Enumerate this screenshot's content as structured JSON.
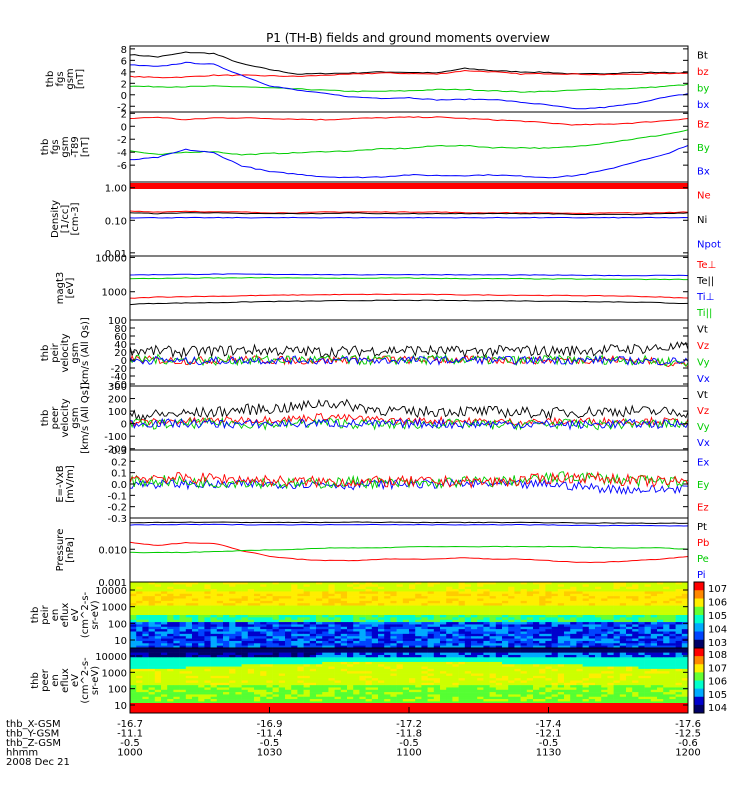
{
  "title": "P1 (TH-B) fields and ground moments overview",
  "colors": {
    "black": "#000000",
    "red": "#ff0000",
    "green": "#00cc00",
    "blue": "#0000ff"
  },
  "chart_data": [
    {
      "type": "line",
      "ylabel": [
        "thb",
        "fgs",
        "gsm",
        "[nT]"
      ],
      "yticks": [
        "8",
        "6",
        "4",
        "2",
        "0",
        "-2"
      ],
      "ylim": [
        -3,
        8.5
      ],
      "series": [
        {
          "name": "Bt",
          "color": "black",
          "values": [
            7,
            6.6,
            7.4,
            7.2,
            5.4,
            4.4,
            3.6,
            3.7,
            3.8,
            4.0,
            3.9,
            3.8,
            4.6,
            4.2,
            4.0,
            3.9,
            3.6,
            3.7,
            3.9,
            3.9,
            3.8
          ]
        },
        {
          "name": "bz",
          "color": "red",
          "values": [
            3.2,
            3.0,
            3.1,
            3.4,
            3.4,
            3.3,
            3.2,
            3.4,
            3.6,
            3.8,
            3.7,
            3.6,
            4.2,
            4.0,
            3.6,
            3.7,
            3.6,
            3.5,
            3.6,
            3.7,
            3.8
          ]
        },
        {
          "name": "by",
          "color": "green",
          "values": [
            1.5,
            1.4,
            1.4,
            1.5,
            1.4,
            1.2,
            1.0,
            0.8,
            0.6,
            0.6,
            0.7,
            0.9,
            0.9,
            0.7,
            0.5,
            0.6,
            0.8,
            1.0,
            1.1,
            1.4,
            1.8
          ]
        },
        {
          "name": "bx",
          "color": "blue",
          "values": [
            5.2,
            4.9,
            5.6,
            5.3,
            3.4,
            1.6,
            0.8,
            0.2,
            -0.4,
            -0.6,
            -0.5,
            -0.9,
            -0.8,
            -0.8,
            -1.3,
            -1.8,
            -2.5,
            -2.2,
            -1.6,
            -0.6,
            0.2
          ]
        }
      ]
    },
    {
      "type": "line",
      "ylabel": [
        "thb",
        "fgs",
        "gsm",
        "-T89",
        "[nT]"
      ],
      "yticks": [
        "2",
        "0",
        "-2",
        "-4",
        "-6"
      ],
      "ylim": [
        -8.6,
        2.2
      ],
      "series": [
        {
          "name": "Bz",
          "color": "red",
          "values": [
            1.2,
            1.4,
            1.0,
            1.3,
            1.3,
            1.2,
            1.1,
            1.0,
            1.2,
            1.3,
            1.4,
            1.4,
            1.2,
            1.0,
            0.8,
            0.5,
            0.2,
            0.3,
            0.5,
            0.8,
            1.2
          ]
        },
        {
          "name": "By",
          "color": "green",
          "values": [
            -3.8,
            -4.4,
            -4.0,
            -3.9,
            -4.4,
            -4.2,
            -4.1,
            -3.9,
            -3.8,
            -3.5,
            -3.4,
            -3.0,
            -3.0,
            -3.3,
            -3.3,
            -3.4,
            -3.1,
            -2.6,
            -2.0,
            -1.4,
            -0.6
          ]
        },
        {
          "name": "Bx",
          "color": "blue",
          "values": [
            -5.2,
            -4.8,
            -3.6,
            -4.1,
            -6.1,
            -7.0,
            -7.4,
            -7.8,
            -7.9,
            -7.8,
            -7.5,
            -7.6,
            -7.6,
            -7.5,
            -7.7,
            -7.9,
            -7.6,
            -6.8,
            -5.6,
            -4.6,
            -3.0
          ]
        }
      ]
    },
    {
      "type": "line",
      "ylabel": [
        "Density",
        "[1/cc]",
        "[cm-3]"
      ],
      "yticks": [
        "1.00",
        "0.10",
        "0.01"
      ],
      "log": true,
      "ylim": [
        0.008,
        1.5
      ],
      "series": [
        {
          "name": "Ne",
          "color": "red",
          "values": [
            0.19,
            0.18,
            0.19,
            0.18,
            0.18,
            0.17,
            0.17,
            0.18,
            0.18,
            0.18,
            0.18,
            0.18,
            0.17,
            0.17,
            0.17,
            0.17,
            0.16,
            0.17,
            0.17,
            0.17,
            0.18
          ]
        },
        {
          "name": "Ni",
          "color": "black",
          "values": [
            0.17,
            0.16,
            0.17,
            0.17,
            0.16,
            0.16,
            0.16,
            0.16,
            0.17,
            0.16,
            0.16,
            0.16,
            0.16,
            0.16,
            0.16,
            0.16,
            0.15,
            0.15,
            0.15,
            0.16,
            0.17
          ]
        },
        {
          "name": "Npot",
          "color": "blue",
          "values": [
            0.12,
            0.12,
            0.12,
            0.12,
            0.12,
            0.12,
            0.12,
            0.12,
            0.12,
            0.12,
            0.12,
            0.12,
            0.12,
            0.12,
            0.12,
            0.12,
            0.12,
            0.12,
            0.12,
            0.12,
            0.12
          ]
        }
      ]
    },
    {
      "type": "line",
      "ylabel": [
        "magt3",
        "[eV]"
      ],
      "yticks": [
        "10000",
        "1000"
      ],
      "log": true,
      "ylim": [
        150,
        11000
      ],
      "series": [
        {
          "name": "Te⊥",
          "color": "red",
          "values": [
            640,
            700,
            720,
            740,
            760,
            790,
            800,
            820,
            830,
            840,
            840,
            830,
            810,
            800,
            790,
            780,
            770,
            760,
            740,
            700,
            650
          ]
        },
        {
          "name": "Te||",
          "color": "black",
          "values": [
            430,
            460,
            470,
            480,
            500,
            520,
            530,
            540,
            550,
            560,
            560,
            560,
            550,
            550,
            540,
            530,
            520,
            510,
            500,
            480,
            450
          ]
        },
        {
          "name": "Ti⊥",
          "color": "blue",
          "values": [
            3100,
            3150,
            3200,
            3250,
            3250,
            3200,
            3200,
            3150,
            3100,
            3150,
            3150,
            3150,
            3100,
            3100,
            3050,
            3050,
            3000,
            3000,
            2950,
            3000,
            3000
          ]
        },
        {
          "name": "Ti||",
          "color": "green",
          "values": [
            2400,
            2450,
            2500,
            2500,
            2550,
            2550,
            2500,
            2500,
            2450,
            2500,
            2500,
            2450,
            2400,
            2400,
            2400,
            2350,
            2350,
            2300,
            2300,
            2300,
            2300
          ]
        }
      ]
    },
    {
      "type": "line",
      "noisy": true,
      "ylabel": [
        "thb",
        "peir",
        "velocity",
        "gsm",
        "[km/s (All Qs)]"
      ],
      "yticks": [
        "100",
        "80",
        "60",
        "40",
        "20",
        "0",
        "-20",
        "-40",
        "-60"
      ],
      "ylim": [
        -65,
        100
      ],
      "series": [
        {
          "name": "Vt",
          "color": "black",
          "values": [
            25,
            22,
            20,
            22,
            25,
            24,
            22,
            20,
            22,
            24,
            25,
            22,
            21,
            22,
            24,
            22,
            24,
            25,
            28,
            30,
            32
          ],
          "noise": 14
        },
        {
          "name": "Vz",
          "color": "red",
          "values": [
            2,
            0,
            -2,
            0,
            2,
            0,
            -1,
            0,
            1,
            2,
            0,
            0,
            1,
            0,
            -1,
            0,
            0,
            2,
            0,
            -5,
            -12
          ],
          "noise": 10
        },
        {
          "name": "Vy",
          "color": "green",
          "values": [
            0,
            2,
            0,
            -2,
            0,
            0,
            1,
            0,
            -1,
            0,
            0,
            1,
            0,
            0,
            -2,
            0,
            0,
            1,
            0,
            -3,
            -6
          ],
          "noise": 12
        },
        {
          "name": "Vx",
          "color": "blue",
          "values": [
            -2,
            0,
            -3,
            -2,
            0,
            -1,
            0,
            -1,
            0,
            -2,
            0,
            -1,
            0,
            0,
            -1,
            0,
            -1,
            0,
            -2,
            -3,
            -2
          ],
          "noise": 10
        }
      ]
    },
    {
      "type": "line",
      "noisy": true,
      "ylabel": [
        "thb",
        "peer",
        "velocity",
        "gsm",
        "[km/s (All Qs)]"
      ],
      "yticks": [
        "300",
        "200",
        "100",
        "0",
        "-100",
        "-200"
      ],
      "ylim": [
        -210,
        300
      ],
      "series": [
        {
          "name": "Vt",
          "color": "black",
          "values": [
            60,
            70,
            80,
            90,
            110,
            120,
            130,
            170,
            140,
            110,
            90,
            100,
            100,
            95,
            90,
            85,
            90,
            100,
            100,
            95,
            90
          ],
          "noise": 45
        },
        {
          "name": "Vz",
          "color": "red",
          "values": [
            10,
            15,
            20,
            25,
            30,
            35,
            40,
            60,
            40,
            30,
            20,
            25,
            20,
            15,
            15,
            15,
            20,
            20,
            20,
            20,
            15
          ],
          "noise": 30
        },
        {
          "name": "Vy",
          "color": "green",
          "values": [
            0,
            -5,
            0,
            5,
            0,
            -5,
            0,
            10,
            0,
            -10,
            -5,
            0,
            -5,
            -10,
            -5,
            0,
            -5,
            -10,
            0,
            -5,
            0
          ],
          "noise": 40
        },
        {
          "name": "Vx",
          "color": "blue",
          "values": [
            0,
            5,
            0,
            0,
            -5,
            0,
            0,
            5,
            0,
            -5,
            0,
            0,
            -5,
            0,
            -5,
            -5,
            -10,
            -5,
            0,
            -5,
            0
          ],
          "noise": 35
        }
      ]
    },
    {
      "type": "line",
      "noisy": true,
      "ylabel": [
        "E=-VxB",
        "[mV/m]"
      ],
      "yticks": [
        "0.3",
        "0.2",
        "0.1",
        "0.0",
        "-0.1",
        "-0.2",
        "-0.3"
      ],
      "ylim": [
        -0.3,
        0.3
      ],
      "series": [
        {
          "name": "Ex",
          "color": "blue",
          "values": [
            0.0,
            0.0,
            0.0,
            -0.01,
            0.0,
            0.0,
            0.0,
            0.0,
            -0.01,
            0.0,
            0.0,
            0.0,
            0.0,
            0.0,
            -0.01,
            0.0,
            -0.02,
            -0.04,
            -0.05,
            -0.05,
            -0.03
          ],
          "noise": 0.04
        },
        {
          "name": "Ey",
          "color": "green",
          "values": [
            0.02,
            0.03,
            0.02,
            0.01,
            0.02,
            0.01,
            0.0,
            0.01,
            0.02,
            0.01,
            0.0,
            0.01,
            0.02,
            0.02,
            0.03,
            0.05,
            0.07,
            0.05,
            0.03,
            0.02,
            0.02
          ],
          "noise": 0.05
        },
        {
          "name": "Ez",
          "color": "red",
          "values": [
            0.05,
            0.06,
            0.05,
            0.05,
            0.04,
            0.03,
            0.02,
            0.02,
            0.02,
            0.02,
            0.02,
            0.02,
            0.02,
            0.02,
            0.03,
            0.05,
            0.06,
            0.05,
            0.03,
            0.02,
            0.02
          ],
          "noise": 0.05
        }
      ]
    },
    {
      "type": "line",
      "ylabel": [
        "Pressure",
        "[nPa]"
      ],
      "yticks": [
        "0.010",
        "0.001"
      ],
      "log": true,
      "ylim": [
        0.001,
        0.09
      ],
      "series": [
        {
          "name": "Pt",
          "color": "black",
          "values": [
            0.065,
            0.066,
            0.067,
            0.067,
            0.066,
            0.066,
            0.066,
            0.066,
            0.067,
            0.067,
            0.066,
            0.066,
            0.066,
            0.066,
            0.066,
            0.065,
            0.064,
            0.063,
            0.063,
            0.062,
            0.062
          ]
        },
        {
          "name": "Pb",
          "color": "red",
          "values": [
            0.016,
            0.013,
            0.016,
            0.015,
            0.009,
            0.006,
            0.005,
            0.0045,
            0.0045,
            0.005,
            0.005,
            0.005,
            0.0055,
            0.005,
            0.005,
            0.0045,
            0.004,
            0.004,
            0.0045,
            0.005,
            0.006
          ]
        },
        {
          "name": "Pe",
          "color": "green",
          "values": [
            0.008,
            0.008,
            0.008,
            0.0085,
            0.009,
            0.0095,
            0.01,
            0.011,
            0.011,
            0.011,
            0.012,
            0.012,
            0.012,
            0.012,
            0.012,
            0.012,
            0.012,
            0.011,
            0.011,
            0.011,
            0.01
          ]
        },
        {
          "name": "Pi",
          "color": "blue",
          "values": [
            0.055,
            0.056,
            0.057,
            0.057,
            0.056,
            0.056,
            0.056,
            0.056,
            0.057,
            0.057,
            0.056,
            0.056,
            0.056,
            0.056,
            0.056,
            0.055,
            0.054,
            0.053,
            0.053,
            0.052,
            0.052
          ]
        }
      ]
    },
    {
      "type": "heatmap",
      "ylabel": [
        "thb",
        "peir",
        "en",
        "eflux",
        "eV",
        "(cm^2-s-",
        "sr-eV)"
      ],
      "yticks": [
        "10000",
        "1000",
        "100",
        "10"
      ],
      "colorbar": [
        "10^7",
        "10^6",
        "10^5",
        "10^4",
        "10^3"
      ],
      "species": "ion"
    },
    {
      "type": "heatmap",
      "ylabel": [
        "thb",
        "peer",
        "en",
        "eflux",
        "eV",
        "(cm^2-s-",
        "sr-eV)"
      ],
      "yticks": [
        "10000",
        "1000",
        "100",
        "10"
      ],
      "colorbar": [
        "10^8",
        "10^7",
        "10^6",
        "10^5",
        "10^4"
      ],
      "species": "electron"
    }
  ],
  "x_axis": {
    "row_labels": [
      "thb_X-GSM",
      "thb_Y-GSM",
      "thb_Z-GSM",
      "hhmm",
      "2008 Dec 21"
    ],
    "ticks": [
      {
        "hhmm": "1000",
        "X": "-16.7",
        "Y": "-11.1",
        "Z": "-0.5"
      },
      {
        "hhmm": "1030",
        "X": "-16.9",
        "Y": "-11.4",
        "Z": "-0.5"
      },
      {
        "hhmm": "1100",
        "X": "-17.2",
        "Y": "-11.8",
        "Z": "-0.5"
      },
      {
        "hhmm": "1130",
        "X": "-17.4",
        "Y": "-12.1",
        "Z": "-0.5"
      },
      {
        "hhmm": "1200",
        "X": "-17.6",
        "Y": "-12.5",
        "Z": "-0.6"
      }
    ]
  }
}
